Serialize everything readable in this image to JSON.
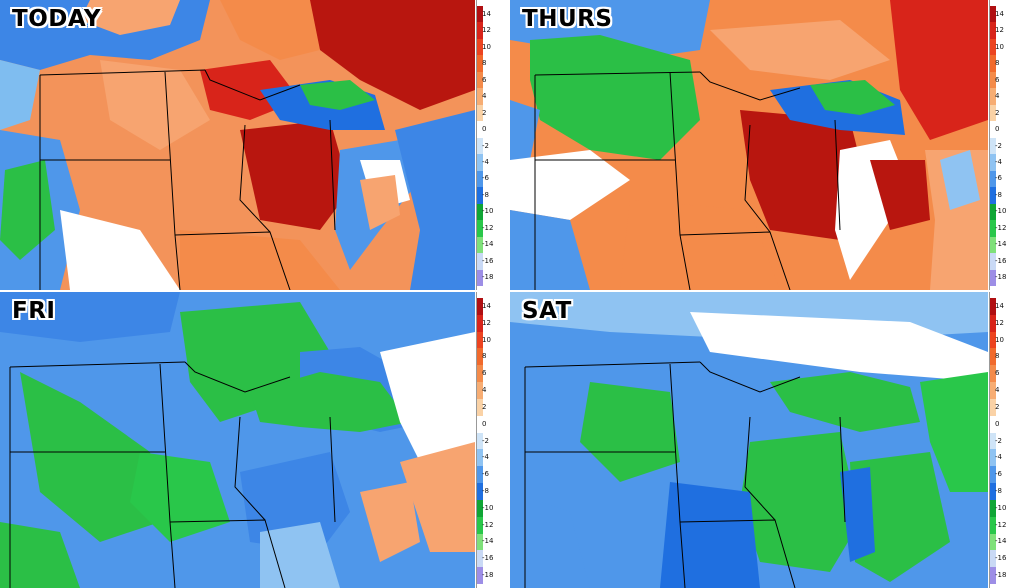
{
  "panels": [
    {
      "title": "TODAY"
    },
    {
      "title": "THURS"
    },
    {
      "title": "FRI"
    },
    {
      "title": "SAT"
    }
  ],
  "scale": {
    "ticks": [
      "14",
      "12",
      "10",
      "8",
      "6",
      "4",
      "2",
      "0",
      "-2",
      "-4",
      "-6",
      "-8",
      "-10",
      "-12",
      "-14",
      "-16",
      "-18"
    ],
    "colors": [
      "#b00f12",
      "#d8241a",
      "#ec4420",
      "#f16a2c",
      "#f48b4a",
      "#f7ad73",
      "#fad2a6",
      "#ffffff",
      "#cfe4f7",
      "#8fc3f2",
      "#4f97ea",
      "#1f6fe0",
      "#0fa535",
      "#29c74a",
      "#7fe07a",
      "#c9d9f5",
      "#9d8ee6"
    ],
    "top_truncated_label": "-18"
  },
  "colors": {
    "warm_dark": "#b8160f",
    "warm": "#e9451f",
    "warm_light": "#f7a470",
    "neutral": "#ffffff",
    "cool_light": "#a9d0f4",
    "cool": "#3d86e6",
    "green": "#2bbf46",
    "green_light": "#86e07b",
    "outline": "#000000",
    "water_outline": "#555555"
  }
}
